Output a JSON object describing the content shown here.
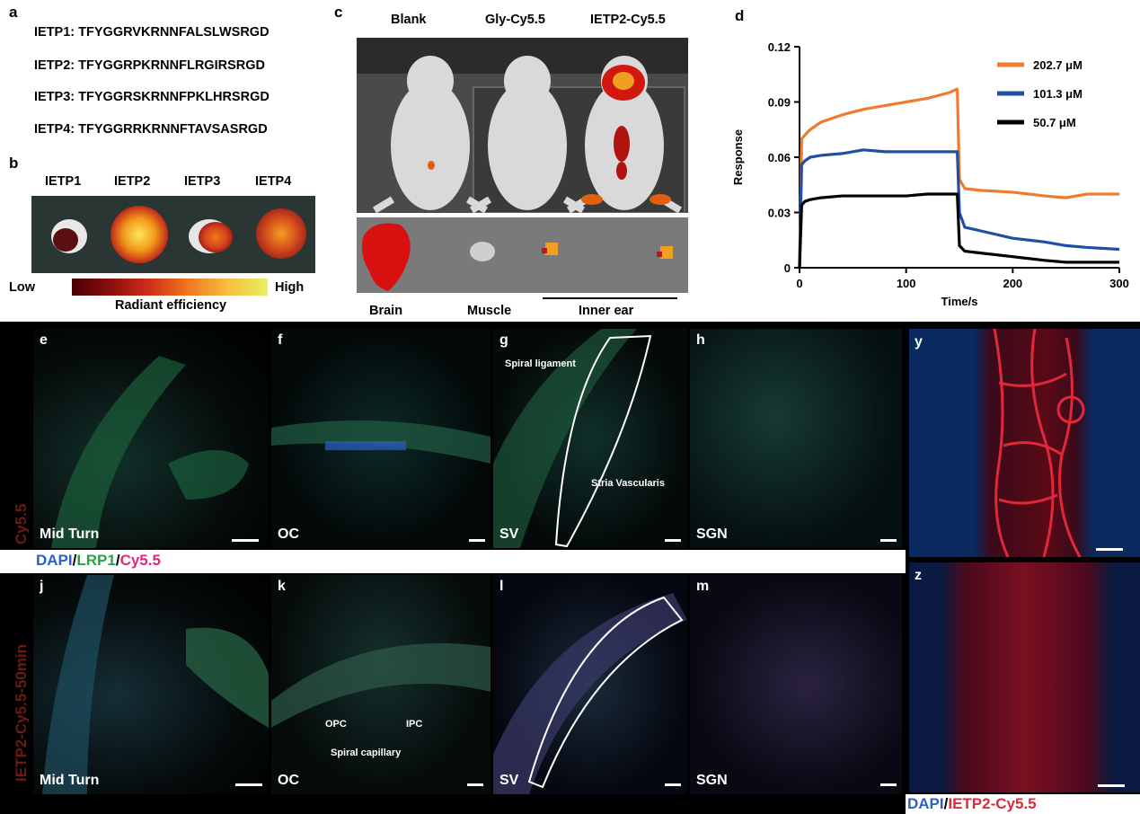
{
  "panel_letters": {
    "a": "a",
    "b": "b",
    "c": "c",
    "d": "d",
    "e": "e",
    "f": "f",
    "g": "g",
    "h": "h",
    "y": "y",
    "j": "j",
    "k": "k",
    "l": "l",
    "m": "m",
    "z": "z"
  },
  "sequences": [
    "IETP1: TFYGGRVKRNNFALSLWSRGD",
    "IETP2: TFYGGRPKRNNFLRGIRSRGD",
    "IETP3: TFYGGRSKRNNFPKLHRSRGD",
    "IETP4: TFYGGRRKRNNFTAVSASRGD"
  ],
  "panel_b": {
    "labels": [
      "IETP1",
      "IETP2",
      "IETP3",
      "IETP4"
    ],
    "scale_low": "Low",
    "scale_high": "High",
    "scale_title": "Radiant efficiency"
  },
  "panel_c": {
    "headers": [
      "Blank",
      "Gly-Cy5.5",
      "IETP2-Cy5.5"
    ],
    "organs": [
      "Brain",
      "Muscle",
      "Inner ear"
    ]
  },
  "chart_data": {
    "type": "line",
    "xlabel": "Time/s",
    "ylabel": "Response",
    "xlim": [
      0,
      300
    ],
    "ylim": [
      0,
      0.12
    ],
    "xticks": [
      "0",
      "100",
      "200",
      "300"
    ],
    "yticks": [
      "0",
      "0.03",
      "0.06",
      "0.09",
      "0.12"
    ],
    "legend_position": "top-right",
    "series": [
      {
        "name": "202.7 μM",
        "color": "#f07a30",
        "x": [
          0,
          2,
          5,
          10,
          20,
          40,
          60,
          80,
          100,
          120,
          140,
          148,
          150,
          155,
          170,
          200,
          230,
          250,
          270,
          300
        ],
        "y": [
          0,
          0.07,
          0.072,
          0.075,
          0.079,
          0.083,
          0.086,
          0.088,
          0.09,
          0.092,
          0.095,
          0.097,
          0.048,
          0.043,
          0.042,
          0.041,
          0.039,
          0.038,
          0.04,
          0.04
        ]
      },
      {
        "name": "101.3 μM",
        "color": "#1f4fa3",
        "x": [
          0,
          2,
          5,
          10,
          20,
          40,
          60,
          80,
          100,
          120,
          140,
          148,
          150,
          155,
          170,
          200,
          230,
          250,
          270,
          300
        ],
        "y": [
          0,
          0.056,
          0.058,
          0.06,
          0.061,
          0.062,
          0.064,
          0.063,
          0.063,
          0.063,
          0.063,
          0.063,
          0.03,
          0.022,
          0.02,
          0.016,
          0.014,
          0.012,
          0.011,
          0.01
        ]
      },
      {
        "name": "50.7 μM",
        "color": "#000000",
        "x": [
          0,
          2,
          5,
          10,
          20,
          40,
          60,
          80,
          100,
          120,
          140,
          148,
          150,
          155,
          170,
          200,
          230,
          250,
          270,
          300
        ],
        "y": [
          0,
          0.034,
          0.036,
          0.037,
          0.038,
          0.039,
          0.039,
          0.039,
          0.039,
          0.04,
          0.04,
          0.04,
          0.012,
          0.009,
          0.008,
          0.006,
          0.004,
          0.003,
          0.003,
          0.003
        ]
      }
    ]
  },
  "micro_row1": {
    "side_label": "Cy5.5",
    "panels": [
      "Mid Turn",
      "OC",
      "SV",
      "SGN"
    ],
    "annotations": {
      "spiral_ligament": "Spiral ligament",
      "stria": "Stria Vascularis"
    }
  },
  "legend_row1": {
    "dapi": "DAPI",
    "sep1": "/",
    "lrp1": "LRP1",
    "sep2": "/",
    "cy55": "Cy5.5"
  },
  "micro_row2": {
    "side_label": "IETP2-Cy5.5-50min",
    "panels": [
      "Mid Turn",
      "OC",
      "SV",
      "SGN"
    ],
    "annotations": {
      "opc": "OPC",
      "ipc": "IPC",
      "capillary": "Spiral capillary"
    }
  },
  "legend_yz": {
    "dapi": "DAPI",
    "sep": "/",
    "ietp": "IETP2-Cy5.5"
  }
}
